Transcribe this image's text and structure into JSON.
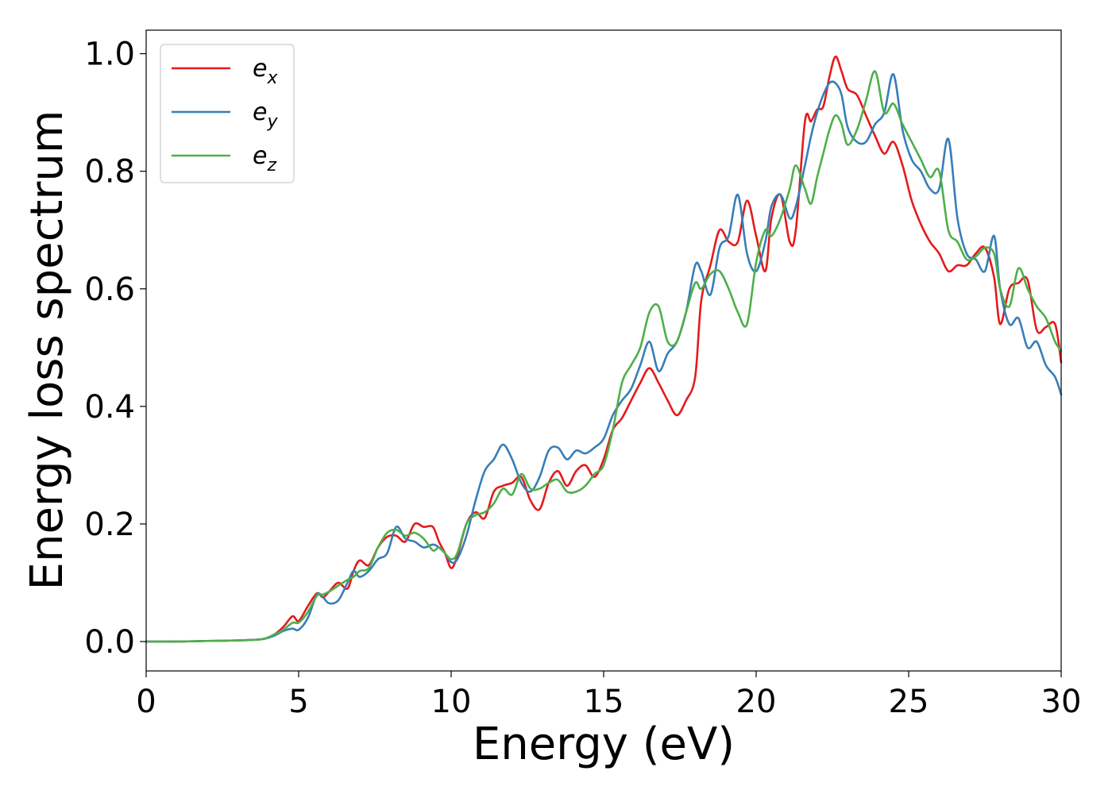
{
  "chart_data": {
    "type": "line",
    "title": "",
    "xlabel": "Energy (eV)",
    "ylabel": "Energy loss spectrum",
    "xlim": [
      0,
      30
    ],
    "ylim": [
      -0.05,
      1.04
    ],
    "xticks": [
      0,
      5,
      10,
      15,
      20,
      25,
      30
    ],
    "xtick_labels": [
      "0",
      "5",
      "10",
      "15",
      "20",
      "25",
      "30"
    ],
    "yticks": [
      0.0,
      0.2,
      0.4,
      0.6,
      0.8,
      1.0
    ],
    "ytick_labels": [
      "0.0",
      "0.2",
      "0.4",
      "0.6",
      "0.8",
      "1.0"
    ],
    "grid": false,
    "legend_position": "top-left",
    "series": [
      {
        "name": "e_x",
        "legend_base": "e",
        "legend_sub": "x",
        "color": "#e41a1c",
        "x": [
          0,
          1,
          2,
          3,
          3.8,
          4.2,
          4.5,
          4.8,
          5.0,
          5.3,
          5.6,
          5.8,
          6.0,
          6.3,
          6.6,
          6.8,
          7.0,
          7.3,
          7.6,
          7.9,
          8.2,
          8.5,
          8.8,
          9.1,
          9.4,
          9.6,
          9.8,
          10.0,
          10.2,
          10.5,
          10.8,
          11.1,
          11.4,
          11.7,
          12.0,
          12.3,
          12.6,
          12.9,
          13.2,
          13.5,
          13.8,
          14.1,
          14.4,
          14.7,
          15.0,
          15.3,
          15.6,
          15.9,
          16.2,
          16.5,
          16.8,
          17.1,
          17.4,
          17.7,
          18.0,
          18.2,
          18.5,
          18.8,
          19.1,
          19.4,
          19.7,
          20.0,
          20.3,
          20.5,
          20.8,
          21.1,
          21.3,
          21.6,
          21.8,
          22.0,
          22.2,
          22.4,
          22.6,
          22.8,
          23.0,
          23.3,
          23.6,
          23.9,
          24.2,
          24.5,
          24.8,
          25.1,
          25.4,
          25.7,
          26.0,
          26.3,
          26.6,
          26.9,
          27.2,
          27.5,
          27.8,
          28.0,
          28.3,
          28.6,
          28.9,
          29.2,
          29.5,
          29.8,
          30.0
        ],
        "values": [
          0.0,
          0.0,
          0.001,
          0.002,
          0.004,
          0.012,
          0.025,
          0.043,
          0.035,
          0.06,
          0.082,
          0.075,
          0.085,
          0.1,
          0.09,
          0.12,
          0.138,
          0.13,
          0.16,
          0.178,
          0.18,
          0.17,
          0.2,
          0.195,
          0.195,
          0.17,
          0.15,
          0.125,
          0.145,
          0.2,
          0.22,
          0.21,
          0.255,
          0.265,
          0.27,
          0.28,
          0.24,
          0.225,
          0.27,
          0.29,
          0.265,
          0.29,
          0.3,
          0.28,
          0.31,
          0.36,
          0.38,
          0.41,
          0.44,
          0.465,
          0.44,
          0.41,
          0.385,
          0.41,
          0.45,
          0.58,
          0.64,
          0.7,
          0.68,
          0.68,
          0.75,
          0.69,
          0.63,
          0.72,
          0.76,
          0.68,
          0.7,
          0.885,
          0.885,
          0.905,
          0.91,
          0.96,
          0.995,
          0.97,
          0.94,
          0.93,
          0.895,
          0.86,
          0.83,
          0.85,
          0.81,
          0.75,
          0.71,
          0.68,
          0.66,
          0.63,
          0.64,
          0.64,
          0.66,
          0.67,
          0.62,
          0.54,
          0.6,
          0.61,
          0.615,
          0.53,
          0.535,
          0.54,
          0.475
        ]
      },
      {
        "name": "e_y",
        "legend_base": "e",
        "legend_sub": "y",
        "color": "#377eb8",
        "x": [
          0,
          1,
          2,
          3,
          3.8,
          4.2,
          4.5,
          4.8,
          5.0,
          5.3,
          5.6,
          5.8,
          6.0,
          6.3,
          6.6,
          6.8,
          7.0,
          7.3,
          7.6,
          7.9,
          8.2,
          8.5,
          8.8,
          9.1,
          9.4,
          9.6,
          9.8,
          10.0,
          10.2,
          10.5,
          10.8,
          11.1,
          11.4,
          11.7,
          12.0,
          12.3,
          12.6,
          12.9,
          13.2,
          13.5,
          13.8,
          14.1,
          14.4,
          14.7,
          15.0,
          15.3,
          15.6,
          15.9,
          16.2,
          16.5,
          16.8,
          17.1,
          17.4,
          17.7,
          18.0,
          18.2,
          18.5,
          18.8,
          19.1,
          19.4,
          19.7,
          20.0,
          20.3,
          20.5,
          20.8,
          21.1,
          21.3,
          21.6,
          21.8,
          22.0,
          22.2,
          22.4,
          22.6,
          22.8,
          23.0,
          23.3,
          23.6,
          23.9,
          24.2,
          24.5,
          24.8,
          25.1,
          25.4,
          25.7,
          26.0,
          26.3,
          26.6,
          26.9,
          27.2,
          27.5,
          27.8,
          28.0,
          28.3,
          28.6,
          28.9,
          29.2,
          29.5,
          29.8,
          30.0
        ],
        "values": [
          0.0,
          0.0,
          0.001,
          0.002,
          0.004,
          0.01,
          0.018,
          0.022,
          0.02,
          0.04,
          0.08,
          0.075,
          0.065,
          0.07,
          0.1,
          0.12,
          0.11,
          0.12,
          0.14,
          0.15,
          0.195,
          0.175,
          0.17,
          0.16,
          0.165,
          0.16,
          0.15,
          0.135,
          0.14,
          0.18,
          0.24,
          0.29,
          0.31,
          0.335,
          0.31,
          0.27,
          0.255,
          0.28,
          0.325,
          0.33,
          0.31,
          0.325,
          0.32,
          0.33,
          0.345,
          0.385,
          0.41,
          0.43,
          0.47,
          0.51,
          0.46,
          0.49,
          0.51,
          0.56,
          0.64,
          0.63,
          0.59,
          0.67,
          0.69,
          0.76,
          0.66,
          0.63,
          0.68,
          0.74,
          0.76,
          0.72,
          0.74,
          0.81,
          0.86,
          0.9,
          0.93,
          0.95,
          0.95,
          0.93,
          0.875,
          0.85,
          0.85,
          0.88,
          0.9,
          0.965,
          0.87,
          0.82,
          0.8,
          0.77,
          0.77,
          0.855,
          0.72,
          0.66,
          0.65,
          0.63,
          0.69,
          0.6,
          0.54,
          0.55,
          0.5,
          0.51,
          0.47,
          0.45,
          0.42
        ]
      },
      {
        "name": "e_z",
        "legend_base": "e",
        "legend_sub": "z",
        "color": "#4daf4a",
        "x": [
          0,
          1,
          2,
          3,
          3.8,
          4.2,
          4.5,
          4.8,
          5.0,
          5.3,
          5.6,
          5.8,
          6.0,
          6.3,
          6.6,
          6.8,
          7.0,
          7.3,
          7.6,
          7.9,
          8.2,
          8.5,
          8.8,
          9.1,
          9.4,
          9.6,
          9.8,
          10.0,
          10.2,
          10.5,
          10.8,
          11.1,
          11.4,
          11.7,
          12.0,
          12.3,
          12.6,
          12.9,
          13.2,
          13.5,
          13.8,
          14.1,
          14.4,
          14.7,
          15.0,
          15.3,
          15.6,
          15.9,
          16.2,
          16.5,
          16.8,
          17.1,
          17.4,
          17.7,
          18.0,
          18.2,
          18.5,
          18.8,
          19.1,
          19.4,
          19.7,
          20.0,
          20.3,
          20.5,
          20.8,
          21.1,
          21.3,
          21.6,
          21.8,
          22.0,
          22.2,
          22.4,
          22.6,
          22.8,
          23.0,
          23.3,
          23.6,
          23.9,
          24.2,
          24.5,
          24.8,
          25.1,
          25.4,
          25.7,
          26.0,
          26.3,
          26.6,
          26.9,
          27.2,
          27.5,
          27.8,
          28.0,
          28.3,
          28.6,
          28.9,
          29.2,
          29.5,
          29.8,
          30.0
        ],
        "values": [
          0.0,
          0.0,
          0.001,
          0.002,
          0.004,
          0.012,
          0.02,
          0.032,
          0.032,
          0.05,
          0.078,
          0.08,
          0.085,
          0.095,
          0.105,
          0.11,
          0.12,
          0.125,
          0.16,
          0.185,
          0.19,
          0.18,
          0.185,
          0.175,
          0.155,
          0.16,
          0.15,
          0.14,
          0.15,
          0.2,
          0.215,
          0.22,
          0.235,
          0.26,
          0.25,
          0.285,
          0.26,
          0.26,
          0.27,
          0.275,
          0.255,
          0.255,
          0.265,
          0.285,
          0.3,
          0.36,
          0.44,
          0.47,
          0.5,
          0.56,
          0.57,
          0.51,
          0.51,
          0.56,
          0.61,
          0.6,
          0.625,
          0.63,
          0.6,
          0.56,
          0.54,
          0.645,
          0.7,
          0.69,
          0.72,
          0.77,
          0.81,
          0.77,
          0.745,
          0.79,
          0.83,
          0.87,
          0.895,
          0.88,
          0.845,
          0.87,
          0.92,
          0.97,
          0.9,
          0.915,
          0.88,
          0.85,
          0.82,
          0.79,
          0.8,
          0.7,
          0.68,
          0.65,
          0.655,
          0.67,
          0.66,
          0.6,
          0.57,
          0.635,
          0.6,
          0.57,
          0.55,
          0.51,
          0.495
        ]
      }
    ]
  }
}
